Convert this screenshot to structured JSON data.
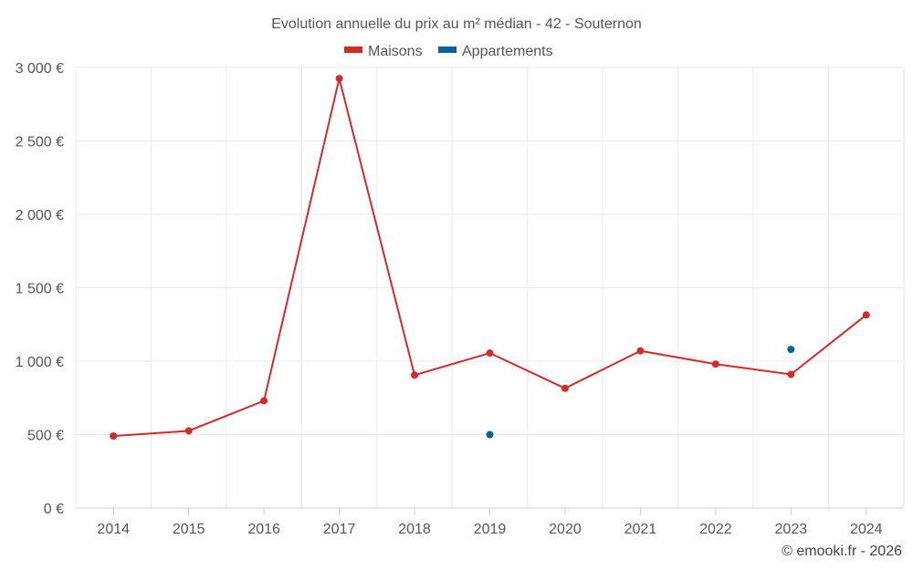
{
  "chart_data": {
    "type": "line",
    "title": "Evolution annuelle du prix au m² médian - 42 - Souternon",
    "x": [
      "2014",
      "2015",
      "2016",
      "2017",
      "2018",
      "2019",
      "2020",
      "2021",
      "2022",
      "2023",
      "2024"
    ],
    "series": [
      {
        "name": "Maisons",
        "color": "#d32a2a",
        "values": [
          490,
          525,
          730,
          2925,
          905,
          1055,
          815,
          1070,
          980,
          910,
          1315
        ]
      },
      {
        "name": "Appartements",
        "color": "#0e6197",
        "values": [
          null,
          null,
          null,
          null,
          null,
          500,
          null,
          null,
          null,
          1080,
          null
        ]
      }
    ],
    "ylim": [
      0,
      3000
    ],
    "yticks": [
      0,
      500,
      1000,
      1500,
      2000,
      2500,
      3000
    ],
    "ytick_labels": [
      "0 €",
      "500 €",
      "1 000 €",
      "1 500 €",
      "2 000 €",
      "2 500 €",
      "3 000 €"
    ],
    "xlabel": "",
    "ylabel": "",
    "grid": true,
    "legend_position": "top-center",
    "credit": "© emooki.fr - 2026"
  }
}
